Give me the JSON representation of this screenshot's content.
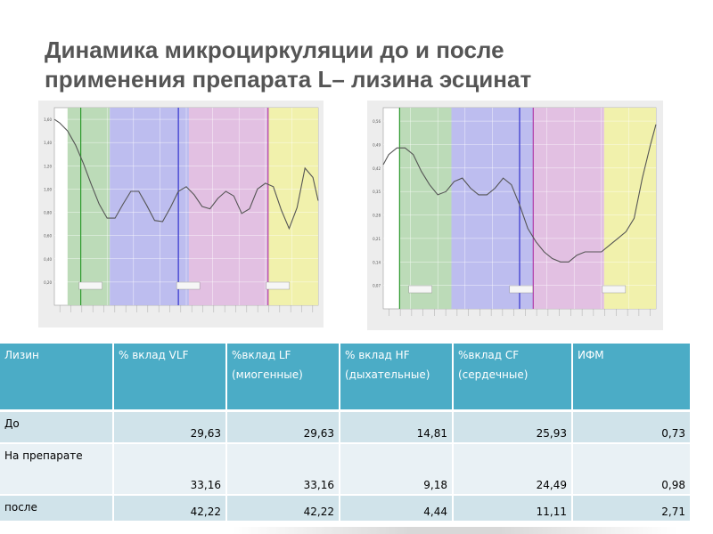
{
  "slide": {
    "title_line1": "Динамика микроциркуляции до и после",
    "title_line2": "применения препарата L– лизина эсцинат"
  },
  "colors": {
    "vlf_band": "#b8d9b4",
    "lf_band": "#b9b9ee",
    "hf_band": "#e0bde0",
    "cf_band": "#f0f0a8",
    "curve": "#555555",
    "marker_green": "#2e9a2e",
    "marker_blue": "#3333cc",
    "marker_purple": "#b03aa8",
    "table_header": "#4bacc6",
    "row_dark": "#d0e3ea",
    "row_light": "#e9f1f5"
  },
  "table": {
    "headers": [
      "Лизин",
      "% вклад VLF",
      "%вклад LF (миогенные)",
      "% вклад HF (дыхательные)",
      "%вклад CF (сердечные)",
      "ИФМ"
    ],
    "rows": [
      {
        "label": "До",
        "values": [
          "29,63",
          "29,63",
          "14,81",
          "25,93",
          "0,73"
        ]
      },
      {
        "label": "На препарате",
        "values": [
          "33,16",
          "33,16",
          "9,18",
          "24,49",
          "0,98"
        ]
      },
      {
        "label": "после",
        "values": [
          "42,22",
          "42,22",
          "4,44",
          "11,11",
          "2,71"
        ]
      }
    ]
  },
  "chart_data": [
    {
      "type": "line",
      "x_fraction": [
        0,
        0.02,
        0.05,
        0.08,
        0.11,
        0.14,
        0.17,
        0.2,
        0.23,
        0.26,
        0.29,
        0.32,
        0.35,
        0.38,
        0.41,
        0.44,
        0.47,
        0.5,
        0.53,
        0.56,
        0.59,
        0.62,
        0.65,
        0.68,
        0.71,
        0.74,
        0.77,
        0.8,
        0.83,
        0.86,
        0.89,
        0.92,
        0.95,
        0.98,
        1.0
      ],
      "y": [
        1.6,
        1.57,
        1.5,
        1.38,
        1.22,
        1.04,
        0.87,
        0.75,
        0.75,
        0.87,
        0.98,
        0.98,
        0.86,
        0.73,
        0.72,
        0.84,
        0.98,
        1.02,
        0.95,
        0.85,
        0.83,
        0.92,
        0.98,
        0.94,
        0.79,
        0.83,
        1.0,
        1.05,
        1.02,
        0.82,
        0.66,
        0.84,
        1.18,
        1.1,
        0.9
      ],
      "ylim": [
        0,
        1.7
      ],
      "y_ticks": [
        1.6,
        1.4,
        1.2,
        1.0,
        0.8,
        0.6,
        0.4,
        0.2
      ],
      "bands": [
        {
          "color": "vlf_band",
          "from": 0.05,
          "to": 0.21
        },
        {
          "color": "lf_band",
          "from": 0.21,
          "to": 0.51
        },
        {
          "color": "hf_band",
          "from": 0.51,
          "to": 0.81
        },
        {
          "color": "cf_band",
          "from": 0.81,
          "to": 1.0
        }
      ],
      "markers": [
        {
          "color": "marker_green",
          "at": 0.1
        },
        {
          "color": "marker_blue",
          "at": 0.47
        },
        {
          "color": "marker_purple",
          "at": 0.81
        }
      ],
      "grid": true
    },
    {
      "type": "line",
      "x_fraction": [
        0,
        0.02,
        0.05,
        0.08,
        0.11,
        0.14,
        0.17,
        0.2,
        0.23,
        0.26,
        0.29,
        0.32,
        0.35,
        0.38,
        0.41,
        0.44,
        0.47,
        0.5,
        0.53,
        0.56,
        0.59,
        0.62,
        0.65,
        0.68,
        0.71,
        0.74,
        0.77,
        0.8,
        0.83,
        0.86,
        0.89,
        0.92,
        0.95,
        0.98,
        1.0
      ],
      "y": [
        0.43,
        0.46,
        0.48,
        0.48,
        0.46,
        0.41,
        0.37,
        0.34,
        0.35,
        0.38,
        0.39,
        0.36,
        0.34,
        0.34,
        0.36,
        0.39,
        0.37,
        0.31,
        0.24,
        0.2,
        0.17,
        0.15,
        0.14,
        0.14,
        0.16,
        0.17,
        0.17,
        0.17,
        0.19,
        0.21,
        0.23,
        0.27,
        0.39,
        0.49,
        0.55
      ],
      "ylim": [
        0,
        0.6
      ],
      "y_ticks": [
        0.56,
        0.49,
        0.42,
        0.35,
        0.28,
        0.21,
        0.14,
        0.07
      ],
      "bands": [
        {
          "color": "vlf_band",
          "from": 0.06,
          "to": 0.25
        },
        {
          "color": "lf_band",
          "from": 0.25,
          "to": 0.55
        },
        {
          "color": "hf_band",
          "from": 0.55,
          "to": 0.81
        },
        {
          "color": "cf_band",
          "from": 0.81,
          "to": 1.0
        }
      ],
      "markers": [
        {
          "color": "marker_green",
          "at": 0.06
        },
        {
          "color": "marker_blue",
          "at": 0.5
        },
        {
          "color": "marker_purple",
          "at": 0.55
        }
      ],
      "grid": true
    }
  ]
}
